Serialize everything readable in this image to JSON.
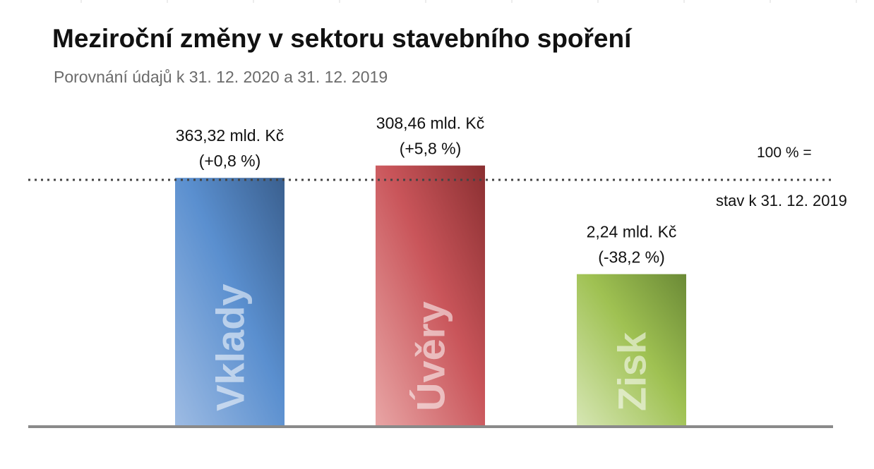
{
  "title": "Meziroční změny v sektoru stavebního spoření",
  "subtitle": "Porovnání údajů k 31. 12. 2020 a 31. 12. 2019",
  "reference_note": {
    "line1": "100 % =",
    "line2": "stav k 31. 12. 2019"
  },
  "chart_data": {
    "type": "bar",
    "categories": [
      "Vklady",
      "Úvěry",
      "Zisk"
    ],
    "values": [
      100.8,
      105.8,
      61.8
    ],
    "value_unit": "% of value at 31. 12. 2019",
    "reference_line": 100,
    "data_labels": [
      {
        "amount": "363,32 mld. Kč",
        "change": "(+0,8 %)"
      },
      {
        "amount": "308,46 mld. Kč",
        "change": "(+5,8 %)"
      },
      {
        "amount": "2,24 mld. Kč",
        "change": "(-38,2 %)"
      }
    ],
    "colors": {
      "Vklady": [
        "#9dbbe3",
        "#5a8fcf",
        "#3a5f8e"
      ],
      "Úvěry": [
        "#e8a5a5",
        "#c9555a",
        "#8a2f31"
      ],
      "Zisk": [
        "#d6e6b4",
        "#9fc152",
        "#6b8a36"
      ]
    },
    "ylim": [
      0,
      106
    ],
    "grid": false,
    "legend": "none"
  }
}
